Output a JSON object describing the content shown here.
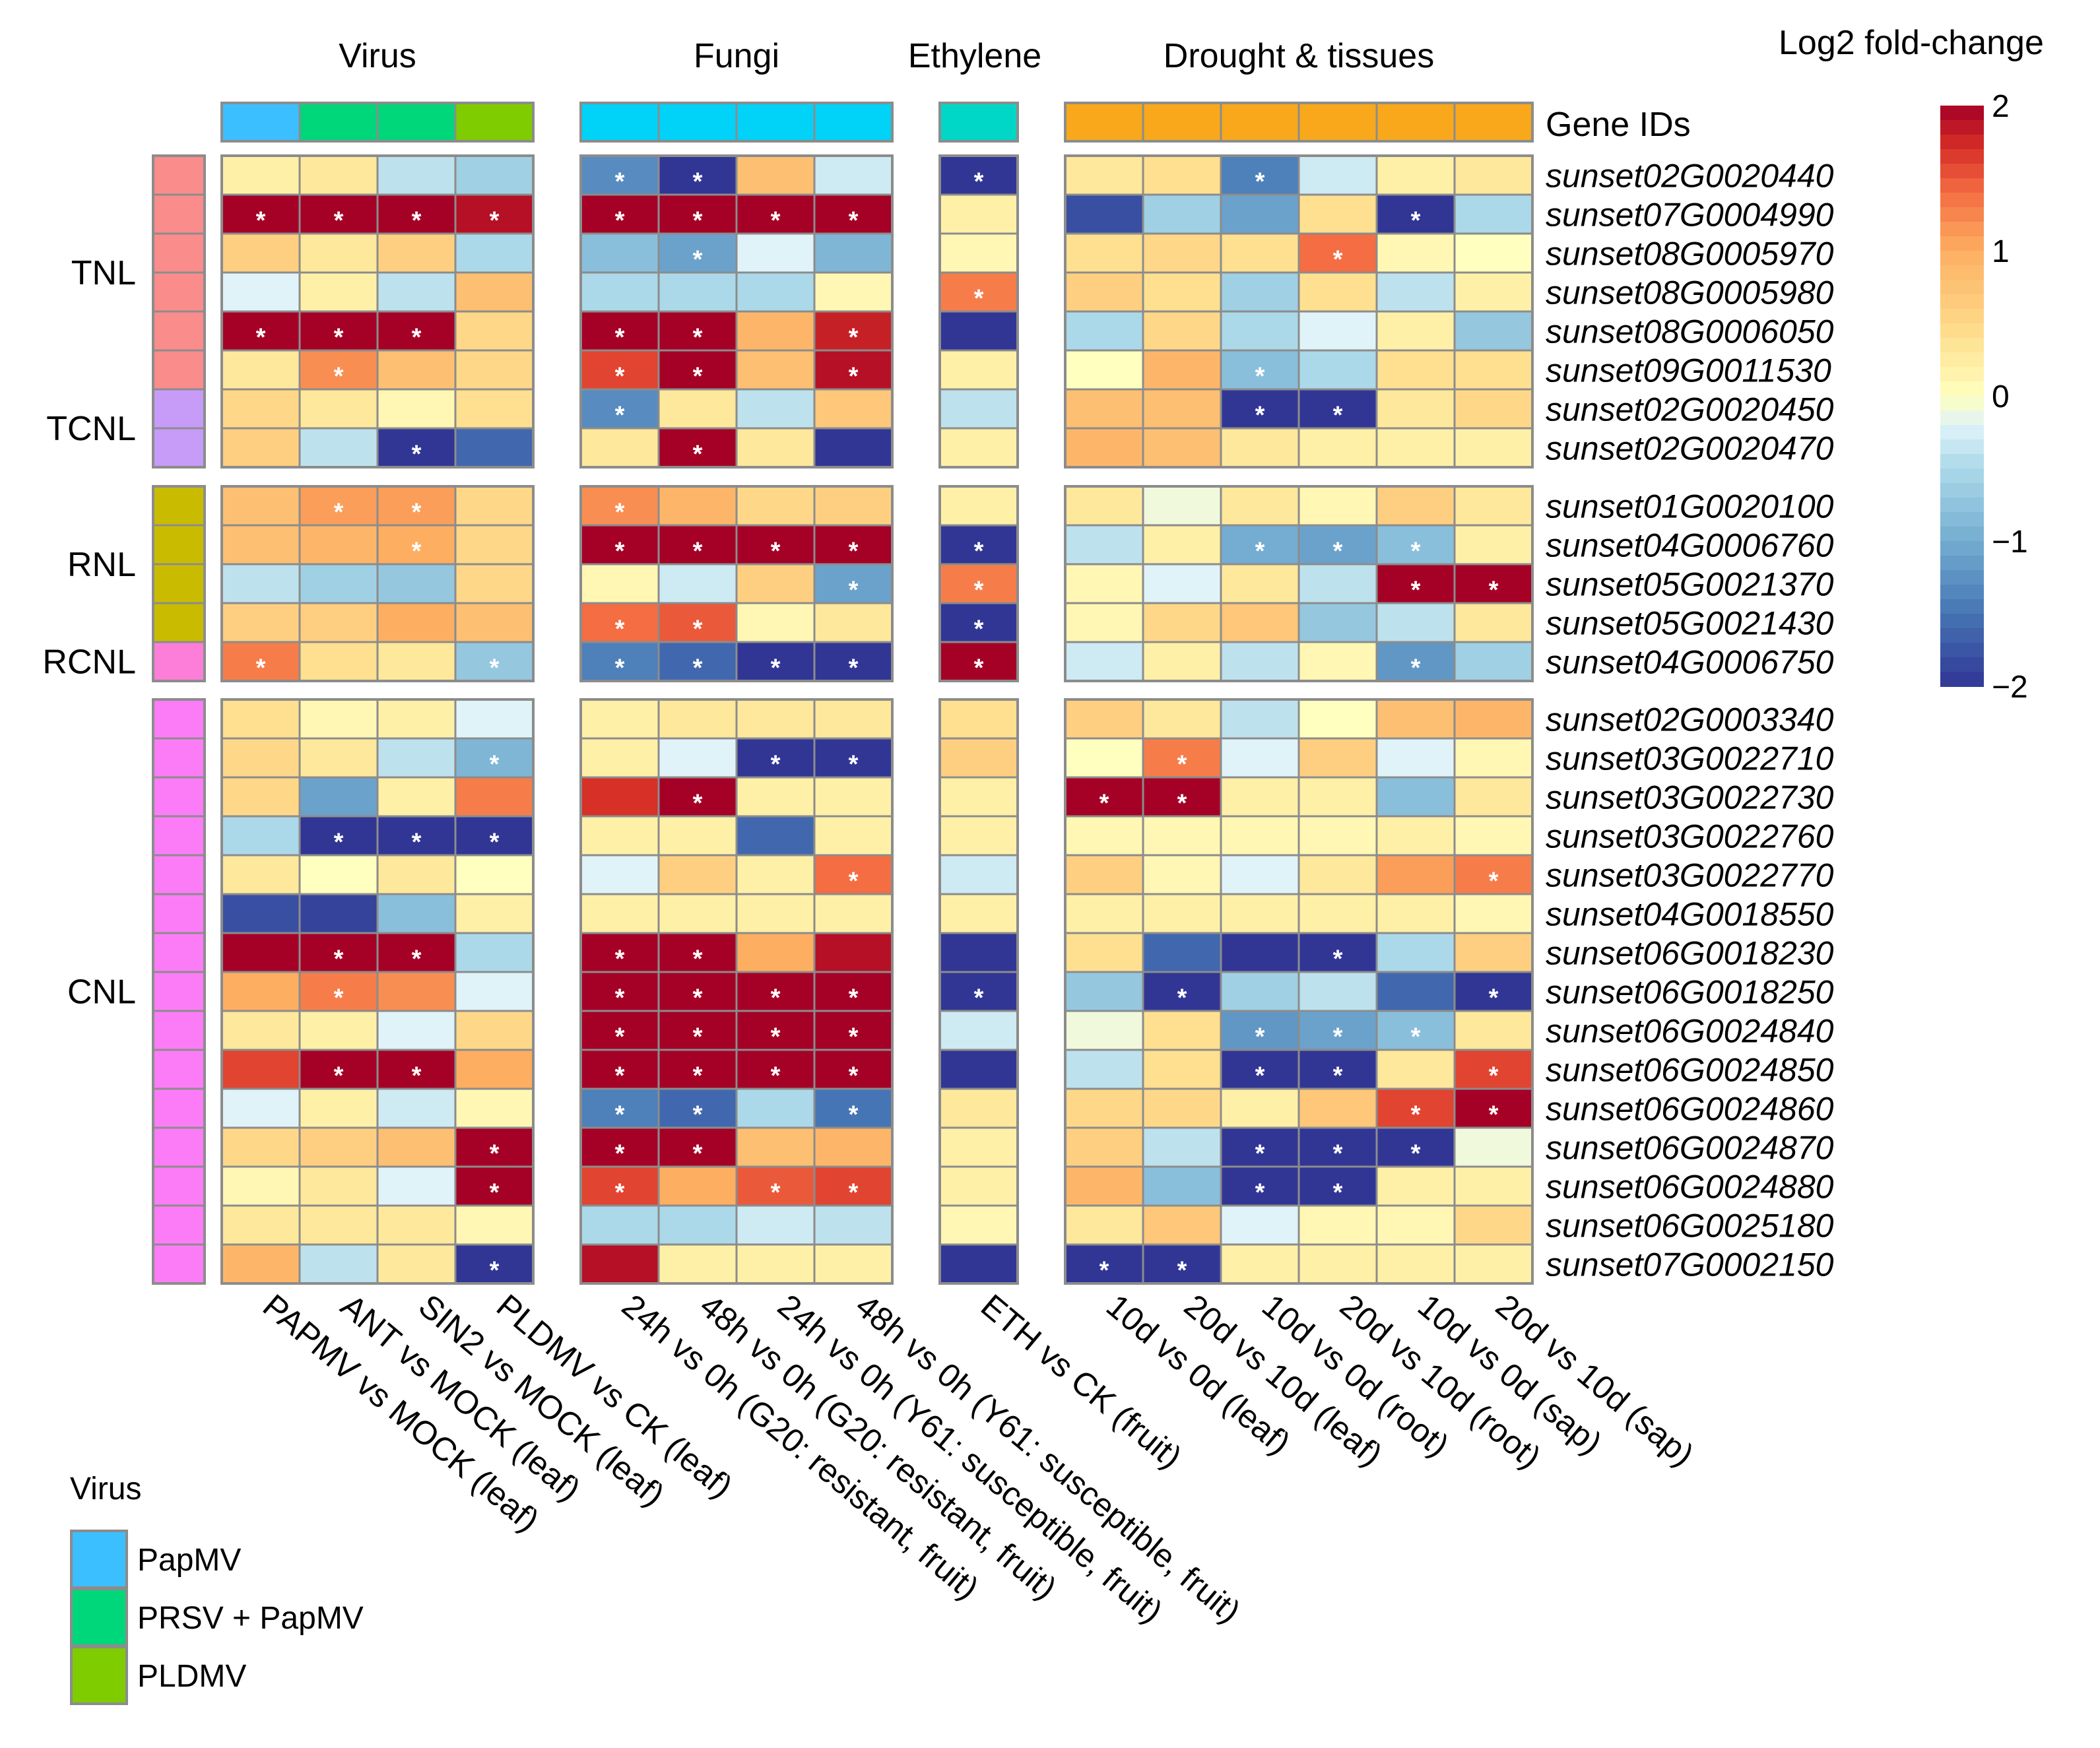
{
  "chart_data": {
    "type": "heatmap",
    "title": "Log2 fold-change",
    "legend_title": "Log2 fold-change",
    "color_range": [
      -2,
      2
    ],
    "color_ticks": [
      2,
      1,
      0,
      -1,
      -2
    ],
    "color_tick_labels": [
      "2",
      "1",
      "0",
      "−1",
      "−2"
    ],
    "row_annotation_label": "Gene IDs",
    "group_titles": [
      {
        "name": "Virus",
        "columns": [
          0,
          3
        ]
      },
      {
        "name": "Fungi",
        "columns": [
          4,
          7
        ]
      },
      {
        "name": "Ethylene",
        "columns": [
          8,
          8
        ]
      },
      {
        "name": "Drought & tissues",
        "columns": [
          9,
          14
        ]
      }
    ],
    "column_groups": [
      [
        0,
        1,
        2,
        3
      ],
      [
        4,
        5,
        6,
        7
      ],
      [
        8
      ],
      [
        9,
        10,
        11,
        12,
        13,
        14
      ]
    ],
    "columns": [
      "PAPMV vs MOCK (leaf)",
      "ANT vs MOCK (leaf)",
      "SIN2 vs MOCK (leaf)",
      "PLDMV vs CK (leaf)",
      "24h vs 0h (G20: resistant, fruit)",
      "48h vs 0h (G20: resistant, fruit)",
      "24h vs 0h (Y61: susceptible, fruit)",
      "48h vs 0h (Y61: susceptible, fruit)",
      "ETH vs CK (fruit)",
      "10d vs 0d (leaf)",
      "20d vs 10d (leaf)",
      "10d vs 0d (root)",
      "20d vs 10d (root)",
      "10d vs 0d (sap)",
      "20d vs 10d (sap)"
    ],
    "column_annotation_colors": [
      "#3CBFFF",
      "#00D67A",
      "#00D67A",
      "#7FCC00",
      "#00D2F8",
      "#00D2F8",
      "#00D2F8",
      "#00D2F8",
      "#00D7C6",
      "#F8A81A",
      "#F8A81A",
      "#F8A81A",
      "#F8A81A",
      "#F8A81A",
      "#F8A81A"
    ],
    "virus_legend": {
      "title": "Virus",
      "items": [
        {
          "label": "PapMV",
          "color": "#3CBFFF"
        },
        {
          "label": "PRSV + PapMV",
          "color": "#00D67A"
        },
        {
          "label": "PLDMV",
          "color": "#7FCC00"
        }
      ]
    },
    "row_groups": [
      [
        0,
        1,
        2,
        3,
        4,
        5,
        6,
        7
      ],
      [
        8,
        9,
        10,
        11,
        12
      ],
      [
        13,
        14,
        15,
        16,
        17,
        18,
        19,
        20,
        21,
        22,
        23,
        24,
        25,
        26,
        27
      ]
    ],
    "families": [
      {
        "name": "TNL",
        "rows": [
          0,
          5
        ],
        "color": "#FA8C8C"
      },
      {
        "name": "TCNL",
        "rows": [
          6,
          7
        ],
        "color": "#C79BF8"
      },
      {
        "name": "RNL",
        "rows": [
          8,
          11
        ],
        "color": "#C9BC00"
      },
      {
        "name": "RCNL",
        "rows": [
          12,
          12
        ],
        "color": "#FC7ED8"
      },
      {
        "name": "CNL",
        "rows": [
          13,
          27
        ],
        "color": "#FC7CF8"
      }
    ],
    "rows": [
      "sunset02G0020440",
      "sunset07G0004990",
      "sunset08G0005970",
      "sunset08G0005980",
      "sunset08G0006050",
      "sunset09G0011530",
      "sunset02G0020450",
      "sunset02G0020470",
      "sunset01G0020100",
      "sunset04G0006760",
      "sunset05G0021370",
      "sunset05G0021430",
      "sunset04G0006750",
      "sunset02G0003340",
      "sunset03G0022710",
      "sunset03G0022730",
      "sunset03G0022760",
      "sunset03G0022770",
      "sunset04G0018550",
      "sunset06G0018230",
      "sunset06G0018250",
      "sunset06G0024840",
      "sunset06G0024850",
      "sunset06G0024860",
      "sunset06G0024870",
      "sunset06G0024880",
      "sunset06G0025180",
      "sunset07G0002150"
    ],
    "values": [
      [
        0.2,
        0.3,
        -0.4,
        -0.6,
        -1.3,
        -2.0,
        0.8,
        -0.3,
        -2.0,
        0.3,
        0.4,
        -1.4,
        -0.3,
        0.2,
        0.3
      ],
      [
        2.0,
        2.0,
        2.0,
        1.9,
        2.0,
        2.0,
        2.0,
        2.0,
        0.2,
        -1.8,
        -0.6,
        -1.1,
        0.4,
        -2.0,
        -0.5
      ],
      [
        0.6,
        0.3,
        0.6,
        -0.5,
        -0.8,
        -1.1,
        -0.2,
        -0.9,
        0.1,
        0.4,
        0.5,
        0.4,
        1.4,
        0.1,
        0.0
      ],
      [
        -0.2,
        0.2,
        -0.4,
        0.8,
        -0.5,
        -0.5,
        -0.5,
        0.1,
        1.3,
        0.6,
        0.4,
        -0.6,
        0.4,
        -0.4,
        0.2
      ],
      [
        2.0,
        2.0,
        2.0,
        0.5,
        2.0,
        2.0,
        0.9,
        1.8,
        -2.0,
        -0.5,
        0.5,
        -0.5,
        -0.2,
        0.2,
        -0.7
      ],
      [
        0.3,
        1.2,
        0.8,
        0.5,
        1.6,
        2.0,
        0.8,
        1.9,
        0.2,
        0.0,
        0.9,
        -0.8,
        -0.5,
        0.4,
        0.4
      ],
      [
        0.5,
        0.3,
        0.1,
        0.4,
        -1.3,
        0.3,
        -0.4,
        0.7,
        -0.4,
        0.8,
        0.8,
        -2.0,
        -2.0,
        0.3,
        0.5
      ],
      [
        0.6,
        -0.4,
        -2.0,
        -1.6,
        0.3,
        2.0,
        0.3,
        -2.0,
        0.2,
        0.9,
        0.8,
        0.3,
        0.2,
        0.2,
        0.2
      ],
      [
        0.8,
        1.1,
        1.1,
        0.5,
        1.2,
        0.9,
        0.5,
        0.6,
        0.2,
        0.3,
        -0.1,
        0.3,
        0.1,
        0.6,
        0.3
      ],
      [
        0.8,
        0.9,
        1.0,
        0.5,
        2.0,
        2.0,
        2.0,
        2.0,
        -2.0,
        -0.4,
        0.2,
        -1.0,
        -1.1,
        -0.8,
        0.2
      ],
      [
        -0.4,
        -0.6,
        -0.7,
        0.5,
        0.1,
        -0.3,
        0.6,
        -1.1,
        1.3,
        0.1,
        -0.2,
        0.3,
        -0.4,
        2.0,
        2.0
      ],
      [
        0.6,
        0.6,
        1.0,
        0.8,
        1.4,
        1.5,
        0.1,
        0.3,
        -2.0,
        0.1,
        0.5,
        0.7,
        -0.7,
        -0.4,
        0.3
      ],
      [
        1.3,
        0.4,
        0.3,
        -0.7,
        -1.4,
        -1.6,
        -2.0,
        -2.0,
        2.0,
        -0.3,
        0.2,
        -0.4,
        0.1,
        -1.2,
        -0.6
      ],
      [
        0.4,
        0.1,
        0.2,
        -0.2,
        0.2,
        0.3,
        0.3,
        0.3,
        0.4,
        0.6,
        0.3,
        -0.4,
        0.0,
        0.8,
        0.9
      ],
      [
        0.5,
        0.3,
        -0.4,
        -0.9,
        0.2,
        -0.2,
        -2.0,
        -2.0,
        0.6,
        0.0,
        1.3,
        -0.2,
        0.6,
        -0.2,
        0.1
      ],
      [
        0.5,
        -1.1,
        0.2,
        1.3,
        1.7,
        2.0,
        0.2,
        0.2,
        0.2,
        2.0,
        2.0,
        0.2,
        0.2,
        -0.8,
        0.3
      ],
      [
        -0.5,
        -2.0,
        -2.0,
        -2.0,
        0.2,
        0.2,
        -1.6,
        0.2,
        0.2,
        0.1,
        0.1,
        0.1,
        0.1,
        0.2,
        0.1
      ],
      [
        0.3,
        0.0,
        0.3,
        0.0,
        -0.2,
        0.6,
        0.2,
        1.4,
        -0.3,
        0.6,
        0.1,
        -0.2,
        0.3,
        1.1,
        1.3
      ],
      [
        -1.8,
        -1.9,
        -0.8,
        0.2,
        0.2,
        0.2,
        0.2,
        0.2,
        0.2,
        0.2,
        0.2,
        0.2,
        0.2,
        0.2,
        0.1
      ],
      [
        2.0,
        2.0,
        2.0,
        -0.5,
        2.0,
        2.0,
        1.0,
        1.9,
        -2.0,
        0.4,
        -1.6,
        -2.0,
        -2.0,
        -0.5,
        0.6
      ],
      [
        1.0,
        1.3,
        1.2,
        -0.2,
        2.0,
        2.0,
        2.0,
        2.0,
        -2.0,
        -0.7,
        -2.0,
        -0.6,
        -0.4,
        -1.6,
        -2.0
      ],
      [
        0.3,
        0.2,
        -0.2,
        0.5,
        2.0,
        2.0,
        2.0,
        2.0,
        -0.3,
        -0.1,
        0.4,
        -1.2,
        -1.1,
        -0.8,
        0.3
      ],
      [
        1.6,
        2.0,
        2.0,
        1.0,
        2.0,
        2.0,
        2.0,
        2.0,
        -2.0,
        -0.4,
        0.4,
        -2.0,
        -2.0,
        0.3,
        1.6
      ],
      [
        -0.2,
        0.2,
        -0.3,
        0.1,
        -1.4,
        -1.6,
        -0.5,
        -1.5,
        0.3,
        0.5,
        0.5,
        0.2,
        0.7,
        1.6,
        2.0
      ],
      [
        0.5,
        0.6,
        0.8,
        2.0,
        2.0,
        2.0,
        0.8,
        0.9,
        0.2,
        0.6,
        -0.4,
        -2.0,
        -2.0,
        -2.0,
        -0.1
      ],
      [
        0.1,
        0.3,
        -0.2,
        2.0,
        1.6,
        1.0,
        1.5,
        1.6,
        0.2,
        0.9,
        -0.8,
        -2.0,
        -2.0,
        0.2,
        0.2
      ],
      [
        0.3,
        0.3,
        0.3,
        0.1,
        -0.5,
        -0.5,
        -0.3,
        -0.4,
        0.1,
        0.3,
        0.7,
        -0.2,
        0.1,
        0.1,
        0.5
      ],
      [
        0.9,
        -0.4,
        0.3,
        -2.0,
        1.9,
        0.2,
        0.2,
        0.2,
        -2.0,
        -2.0,
        -2.0,
        0.2,
        0.2,
        0.2,
        0.2
      ]
    ],
    "significance_marker": "*",
    "significant": [
      [
        0,
        4
      ],
      [
        0,
        5
      ],
      [
        0,
        8
      ],
      [
        0,
        11
      ],
      [
        1,
        0
      ],
      [
        1,
        1
      ],
      [
        1,
        2
      ],
      [
        1,
        3
      ],
      [
        1,
        4
      ],
      [
        1,
        5
      ],
      [
        1,
        6
      ],
      [
        1,
        7
      ],
      [
        1,
        13
      ],
      [
        2,
        5
      ],
      [
        2,
        12
      ],
      [
        3,
        8
      ],
      [
        4,
        0
      ],
      [
        4,
        1
      ],
      [
        4,
        2
      ],
      [
        4,
        4
      ],
      [
        4,
        5
      ],
      [
        4,
        7
      ],
      [
        5,
        1
      ],
      [
        5,
        4
      ],
      [
        5,
        5
      ],
      [
        5,
        7
      ],
      [
        5,
        11
      ],
      [
        6,
        4
      ],
      [
        6,
        11
      ],
      [
        6,
        12
      ],
      [
        7,
        2
      ],
      [
        7,
        5
      ],
      [
        8,
        1
      ],
      [
        8,
        2
      ],
      [
        8,
        4
      ],
      [
        9,
        2
      ],
      [
        9,
        4
      ],
      [
        9,
        5
      ],
      [
        9,
        6
      ],
      [
        9,
        7
      ],
      [
        9,
        8
      ],
      [
        9,
        11
      ],
      [
        9,
        12
      ],
      [
        9,
        13
      ],
      [
        10,
        7
      ],
      [
        10,
        8
      ],
      [
        10,
        13
      ],
      [
        10,
        14
      ],
      [
        11,
        4
      ],
      [
        11,
        5
      ],
      [
        11,
        8
      ],
      [
        12,
        0
      ],
      [
        12,
        3
      ],
      [
        12,
        4
      ],
      [
        12,
        5
      ],
      [
        12,
        6
      ],
      [
        12,
        7
      ],
      [
        12,
        8
      ],
      [
        12,
        13
      ],
      [
        14,
        3
      ],
      [
        14,
        6
      ],
      [
        14,
        7
      ],
      [
        14,
        10
      ],
      [
        15,
        5
      ],
      [
        15,
        9
      ],
      [
        15,
        10
      ],
      [
        16,
        1
      ],
      [
        16,
        2
      ],
      [
        16,
        3
      ],
      [
        17,
        7
      ],
      [
        17,
        14
      ],
      [
        19,
        1
      ],
      [
        19,
        2
      ],
      [
        19,
        4
      ],
      [
        19,
        5
      ],
      [
        19,
        12
      ],
      [
        20,
        1
      ],
      [
        20,
        4
      ],
      [
        20,
        5
      ],
      [
        20,
        6
      ],
      [
        20,
        7
      ],
      [
        20,
        8
      ],
      [
        20,
        10
      ],
      [
        20,
        14
      ],
      [
        21,
        4
      ],
      [
        21,
        5
      ],
      [
        21,
        6
      ],
      [
        21,
        7
      ],
      [
        21,
        11
      ],
      [
        21,
        12
      ],
      [
        21,
        13
      ],
      [
        22,
        1
      ],
      [
        22,
        2
      ],
      [
        22,
        4
      ],
      [
        22,
        5
      ],
      [
        22,
        6
      ],
      [
        22,
        7
      ],
      [
        22,
        11
      ],
      [
        22,
        12
      ],
      [
        22,
        14
      ],
      [
        23,
        4
      ],
      [
        23,
        5
      ],
      [
        23,
        7
      ],
      [
        23,
        13
      ],
      [
        23,
        14
      ],
      [
        24,
        3
      ],
      [
        24,
        4
      ],
      [
        24,
        5
      ],
      [
        24,
        11
      ],
      [
        24,
        12
      ],
      [
        24,
        13
      ],
      [
        25,
        3
      ],
      [
        25,
        4
      ],
      [
        25,
        6
      ],
      [
        25,
        7
      ],
      [
        25,
        11
      ],
      [
        25,
        12
      ],
      [
        27,
        3
      ],
      [
        27,
        9
      ],
      [
        27,
        10
      ]
    ]
  }
}
